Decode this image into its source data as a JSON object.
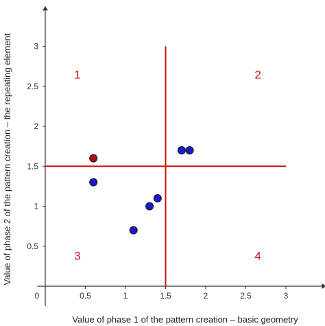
{
  "chart_data": {
    "type": "scatter",
    "title": "",
    "xlabel": "Value of phase 1 of the pattern creation – basic geometry",
    "ylabel": "Value of phase 2 of the pattern creation – the repeating element",
    "xlim": [
      -0.1,
      3.5
    ],
    "ylim": [
      -0.25,
      3.5
    ],
    "x_ticks": [
      "0",
      "0.5",
      "1",
      "1.5",
      "2",
      "2.5",
      "3"
    ],
    "x_tick_values": [
      0,
      0.5,
      1,
      1.5,
      2,
      2.5,
      3
    ],
    "y_ticks": [
      "0.5",
      "1",
      "1.5",
      "2",
      "2.5",
      "3"
    ],
    "y_tick_values": [
      0.5,
      1,
      1.5,
      2,
      2.5,
      3
    ],
    "grid": false,
    "series": [
      {
        "color": "#1a1acc",
        "x": [
          0.6,
          1.1,
          1.3,
          1.4,
          1.7,
          1.8
        ],
        "y": [
          1.3,
          0.7,
          1.0,
          1.1,
          1.7,
          1.7
        ]
      },
      {
        "color": "#b01010",
        "x": [
          0.6
        ],
        "y": [
          1.6
        ]
      }
    ],
    "reference_lines": {
      "color": "#cc1111",
      "vertical": {
        "x": 1.5,
        "y_from": 0,
        "y_to": 3
      },
      "horizontal": {
        "y": 1.5,
        "x_from": 0,
        "x_to": 3
      }
    },
    "quadrant_labels": [
      {
        "text": "1",
        "x": 0.4,
        "y": 2.65
      },
      {
        "text": "2",
        "x": 2.65,
        "y": 2.65
      },
      {
        "text": "3",
        "x": 0.4,
        "y": 0.38
      },
      {
        "text": "4",
        "x": 2.65,
        "y": 0.38
      }
    ],
    "axis_color": "#333333",
    "quadrant_label_color": "#cc1111"
  }
}
